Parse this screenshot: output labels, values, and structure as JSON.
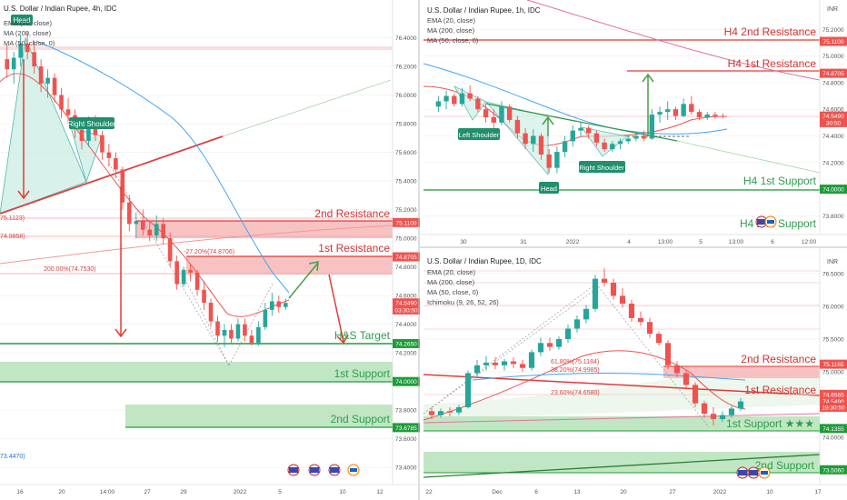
{
  "colors": {
    "bull": "#26a69a",
    "bear": "#ef5350",
    "support_zone": "#b9e3bd",
    "support_line": "#1f9c3a",
    "support_text": "#2e9c4a",
    "resistance_zone": "#f7b7b7",
    "resistance_line": "#e53935",
    "resistance_text": "#d32f2f",
    "ema20": "#ef5350",
    "ma200": "#42a5f5",
    "ma50": "#e57373",
    "badge": "#1f8f6e",
    "price_badge": "#ef5350",
    "grid": "#eeeeee"
  },
  "chart_data": [
    {
      "id": "h4",
      "type": "candlestick",
      "title": "U.S. Dollar / Indian Rupee, 4h, IDC",
      "indicators": [
        "EMA (20, close)",
        "MA (200, close)",
        "MA (50, close, 0)"
      ],
      "y_ticks": [
        "76.4000",
        "76.2000",
        "76.0000",
        "75.8000",
        "75.6000",
        "75.4000",
        "75.2000",
        "75.0000",
        "74.8000",
        "74.6000",
        "74.4000",
        "74.2000",
        "74.0000",
        "73.8000",
        "73.6000",
        "73.4000"
      ],
      "ylim": [
        73.3,
        76.6
      ],
      "x_ticks": [
        "16",
        "20",
        "14:00",
        "27",
        "29",
        "2022",
        "5",
        "10",
        "12"
      ],
      "price_labels": [
        {
          "text": "75.1100",
          "price": 75.11,
          "style": "red"
        },
        {
          "text": "74.8705",
          "price": 74.8705,
          "style": "red"
        },
        {
          "text": "74.5490",
          "price": 74.549,
          "style": "red"
        },
        {
          "text": "03:30:50",
          "price": 74.5,
          "style": "red"
        },
        {
          "text": "74.2650",
          "price": 74.265,
          "style": "green"
        },
        {
          "text": "74.0000",
          "price": 74.0,
          "style": "green"
        },
        {
          "text": "73.6785",
          "price": 73.6785,
          "style": "green"
        }
      ],
      "fib_labels": [
        {
          "text": "75.1123)",
          "price": 75.1123
        },
        {
          "text": "74.9858)",
          "price": 74.9858
        },
        {
          "text": "-27.20%(74.8706)",
          "price": 74.8706
        },
        {
          "text": "200.00%(74.7530)",
          "price": 74.753
        },
        {
          "text": "73.4470)",
          "price": 73.447
        }
      ],
      "annotations": [
        "Head",
        "Right Shoulder",
        "2nd Resistance",
        "1st Resistance",
        "H&S Target",
        "1st Support",
        "2nd Support"
      ],
      "zones": [
        {
          "type": "resistance",
          "label": "2nd Resistance",
          "from": 74.98,
          "to": 75.11
        },
        {
          "type": "resistance",
          "label": "1st Resistance",
          "from": 74.75,
          "to": 74.87
        },
        {
          "type": "support",
          "label": "1st Support",
          "from": 74.0,
          "to": 74.12
        },
        {
          "type": "support",
          "label": "2nd Support",
          "from": 73.68,
          "to": 73.82
        }
      ],
      "target_line": {
        "label": "H&S Target",
        "price": 74.265
      },
      "candles": [
        {
          "o": 76.25,
          "h": 76.35,
          "l": 76.12,
          "c": 76.18
        },
        {
          "o": 76.18,
          "h": 76.3,
          "l": 76.08,
          "c": 76.26
        },
        {
          "o": 76.26,
          "h": 76.42,
          "l": 76.2,
          "c": 76.36
        },
        {
          "o": 76.36,
          "h": 76.44,
          "l": 76.25,
          "c": 76.3
        },
        {
          "o": 76.3,
          "h": 76.38,
          "l": 76.15,
          "c": 76.2
        },
        {
          "o": 76.2,
          "h": 76.25,
          "l": 76.02,
          "c": 76.08
        },
        {
          "o": 76.08,
          "h": 76.18,
          "l": 75.98,
          "c": 76.12
        },
        {
          "o": 76.12,
          "h": 76.15,
          "l": 75.95,
          "c": 76.0
        },
        {
          "o": 76.0,
          "h": 76.05,
          "l": 75.84,
          "c": 75.9
        },
        {
          "o": 75.9,
          "h": 75.98,
          "l": 75.8,
          "c": 75.86
        },
        {
          "o": 75.86,
          "h": 75.9,
          "l": 75.7,
          "c": 75.76
        },
        {
          "o": 75.76,
          "h": 75.8,
          "l": 75.62,
          "c": 75.68
        },
        {
          "o": 75.68,
          "h": 75.85,
          "l": 75.64,
          "c": 75.8
        },
        {
          "o": 75.8,
          "h": 75.86,
          "l": 75.68,
          "c": 75.72
        },
        {
          "o": 75.72,
          "h": 75.75,
          "l": 75.55,
          "c": 75.6
        },
        {
          "o": 75.6,
          "h": 75.66,
          "l": 75.5,
          "c": 75.56
        },
        {
          "o": 75.56,
          "h": 75.6,
          "l": 75.42,
          "c": 75.48
        },
        {
          "o": 75.48,
          "h": 75.5,
          "l": 75.2,
          "c": 75.25
        },
        {
          "o": 75.25,
          "h": 75.3,
          "l": 75.05,
          "c": 75.1
        },
        {
          "o": 75.1,
          "h": 75.18,
          "l": 75.0,
          "c": 75.12
        },
        {
          "o": 75.12,
          "h": 75.2,
          "l": 75.02,
          "c": 75.06
        },
        {
          "o": 75.06,
          "h": 75.12,
          "l": 74.98,
          "c": 75.02
        },
        {
          "o": 75.02,
          "h": 75.16,
          "l": 74.98,
          "c": 75.1
        },
        {
          "o": 75.1,
          "h": 75.14,
          "l": 74.96,
          "c": 75.0
        },
        {
          "o": 75.0,
          "h": 75.04,
          "l": 74.8,
          "c": 74.84
        },
        {
          "o": 74.84,
          "h": 74.88,
          "l": 74.64,
          "c": 74.68
        },
        {
          "o": 74.68,
          "h": 74.8,
          "l": 74.66,
          "c": 74.78
        },
        {
          "o": 74.78,
          "h": 74.82,
          "l": 74.7,
          "c": 74.76
        },
        {
          "o": 74.76,
          "h": 74.78,
          "l": 74.6,
          "c": 74.64
        },
        {
          "o": 74.64,
          "h": 74.7,
          "l": 74.5,
          "c": 74.55
        },
        {
          "o": 74.55,
          "h": 74.58,
          "l": 74.38,
          "c": 74.42
        },
        {
          "o": 74.42,
          "h": 74.46,
          "l": 74.28,
          "c": 74.32
        },
        {
          "o": 74.32,
          "h": 74.4,
          "l": 74.24,
          "c": 74.36
        },
        {
          "o": 74.36,
          "h": 74.4,
          "l": 74.26,
          "c": 74.3
        },
        {
          "o": 74.3,
          "h": 74.44,
          "l": 74.28,
          "c": 74.4
        },
        {
          "o": 74.4,
          "h": 74.44,
          "l": 74.28,
          "c": 74.32
        },
        {
          "o": 74.32,
          "h": 74.36,
          "l": 74.25,
          "c": 74.27
        },
        {
          "o": 74.27,
          "h": 74.42,
          "l": 74.25,
          "c": 74.38
        },
        {
          "o": 74.38,
          "h": 74.55,
          "l": 74.36,
          "c": 74.5
        },
        {
          "o": 74.5,
          "h": 74.62,
          "l": 74.46,
          "c": 74.56
        },
        {
          "o": 74.56,
          "h": 74.6,
          "l": 74.48,
          "c": 74.52
        },
        {
          "o": 74.52,
          "h": 74.58,
          "l": 74.5,
          "c": 74.549
        }
      ]
    },
    {
      "id": "h1",
      "type": "candlestick",
      "title": "U.S. Dollar / Indian Rupee, 1h, IDC",
      "indicators": [
        "EMA (20, close)",
        "MA (200, close)",
        "MA (50, close, 0)"
      ],
      "y_ticks": [
        "75.2000",
        "75.0000",
        "74.8000",
        "74.6000",
        "74.4000",
        "74.2000",
        "74.0000",
        "73.8000"
      ],
      "ylim": [
        73.7,
        75.38
      ],
      "x_ticks": [
        "30",
        "31",
        "2022",
        "4",
        "13:00",
        "5",
        "13:00",
        "6",
        "12:00"
      ],
      "price_labels": [
        {
          "text": "75.1100",
          "price": 75.11,
          "style": "red"
        },
        {
          "text": "74.8705",
          "price": 74.8705,
          "style": "red"
        },
        {
          "text": "74.5490",
          "price": 74.549,
          "style": "red"
        },
        {
          "text": "30:50",
          "price": 74.5,
          "style": "red"
        },
        {
          "text": "74.0000",
          "price": 74.0,
          "style": "green"
        }
      ],
      "annotations": [
        "H4 2nd Resistance",
        "H4 1st Resistance",
        "H4 1st Support",
        "Left Shoulder",
        "Head",
        "Right Shoulder",
        "H4 2nd Support"
      ],
      "candles": [
        {
          "o": 74.62,
          "h": 74.7,
          "l": 74.58,
          "c": 74.66
        },
        {
          "o": 74.66,
          "h": 74.74,
          "l": 74.6,
          "c": 74.7
        },
        {
          "o": 74.7,
          "h": 74.72,
          "l": 74.62,
          "c": 74.64
        },
        {
          "o": 74.64,
          "h": 74.76,
          "l": 74.62,
          "c": 74.72
        },
        {
          "o": 74.72,
          "h": 74.78,
          "l": 74.66,
          "c": 74.68
        },
        {
          "o": 74.68,
          "h": 74.7,
          "l": 74.58,
          "c": 74.6
        },
        {
          "o": 74.6,
          "h": 74.64,
          "l": 74.5,
          "c": 74.54
        },
        {
          "o": 74.54,
          "h": 74.6,
          "l": 74.46,
          "c": 74.5
        },
        {
          "o": 74.5,
          "h": 74.66,
          "l": 74.48,
          "c": 74.62
        },
        {
          "o": 74.62,
          "h": 74.64,
          "l": 74.5,
          "c": 74.52
        },
        {
          "o": 74.52,
          "h": 74.55,
          "l": 74.38,
          "c": 74.42
        },
        {
          "o": 74.42,
          "h": 74.46,
          "l": 74.3,
          "c": 74.34
        },
        {
          "o": 74.34,
          "h": 74.45,
          "l": 74.28,
          "c": 74.4
        },
        {
          "o": 74.4,
          "h": 74.42,
          "l": 74.22,
          "c": 74.26
        },
        {
          "o": 74.26,
          "h": 74.3,
          "l": 74.12,
          "c": 74.16
        },
        {
          "o": 74.16,
          "h": 74.32,
          "l": 74.12,
          "c": 74.28
        },
        {
          "o": 74.28,
          "h": 74.4,
          "l": 74.24,
          "c": 74.36
        },
        {
          "o": 74.36,
          "h": 74.48,
          "l": 74.32,
          "c": 74.44
        },
        {
          "o": 74.44,
          "h": 74.5,
          "l": 74.4,
          "c": 74.46
        },
        {
          "o": 74.46,
          "h": 74.48,
          "l": 74.38,
          "c": 74.42
        },
        {
          "o": 74.42,
          "h": 74.44,
          "l": 74.32,
          "c": 74.35
        },
        {
          "o": 74.35,
          "h": 74.38,
          "l": 74.28,
          "c": 74.3
        },
        {
          "o": 74.3,
          "h": 74.36,
          "l": 74.28,
          "c": 74.34
        },
        {
          "o": 74.34,
          "h": 74.38,
          "l": 74.3,
          "c": 74.36
        },
        {
          "o": 74.36,
          "h": 74.4,
          "l": 74.34,
          "c": 74.38
        },
        {
          "o": 74.38,
          "h": 74.42,
          "l": 74.36,
          "c": 74.4
        },
        {
          "o": 74.4,
          "h": 74.44,
          "l": 74.36,
          "c": 74.38
        },
        {
          "o": 74.38,
          "h": 74.6,
          "l": 74.37,
          "c": 74.56
        },
        {
          "o": 74.56,
          "h": 74.62,
          "l": 74.5,
          "c": 74.58
        },
        {
          "o": 74.58,
          "h": 74.66,
          "l": 74.52,
          "c": 74.6
        },
        {
          "o": 74.6,
          "h": 74.62,
          "l": 74.52,
          "c": 74.55
        },
        {
          "o": 74.55,
          "h": 74.68,
          "l": 74.54,
          "c": 74.64
        },
        {
          "o": 74.64,
          "h": 74.7,
          "l": 74.56,
          "c": 74.58
        },
        {
          "o": 74.58,
          "h": 74.6,
          "l": 74.52,
          "c": 74.54
        },
        {
          "o": 74.54,
          "h": 74.58,
          "l": 74.52,
          "c": 74.56
        },
        {
          "o": 74.56,
          "h": 74.58,
          "l": 74.53,
          "c": 74.55
        },
        {
          "o": 74.55,
          "h": 74.57,
          "l": 74.53,
          "c": 74.549
        }
      ]
    },
    {
      "id": "d1",
      "type": "candlestick",
      "title": "U.S. Dollar / Indian Rupee, 1D, IDC",
      "indicators": [
        "EMA (20, close)",
        "MA (200, close)",
        "MA (50, close, 0)",
        "Ichimoku (9, 26, 52, 26)"
      ],
      "y_ticks": [
        "76.5000",
        "76.0000",
        "75.5000",
        "75.0000",
        "74.5000",
        "74.0000",
        "73.5000"
      ],
      "ylim": [
        73.35,
        76.72
      ],
      "x_ticks": [
        "22",
        "Dec",
        "6",
        "13",
        "20",
        "27",
        "2022",
        "10",
        "17"
      ],
      "price_labels": [
        {
          "text": "75.1165",
          "price": 75.1165,
          "style": "red"
        },
        {
          "text": "74.6565",
          "price": 74.6565,
          "style": "red"
        },
        {
          "text": "74.5490",
          "price": 74.549,
          "style": "red"
        },
        {
          "text": "19:30:50",
          "price": 74.46,
          "style": "red"
        },
        {
          "text": "74.1355",
          "price": 74.1355,
          "style": "green"
        },
        {
          "text": "73.5060",
          "price": 73.506,
          "style": "green"
        }
      ],
      "fib_labels": [
        {
          "text": "61.80%(75.1184)",
          "price": 75.1184
        },
        {
          "text": "38.20%(74.9985)",
          "price": 74.9985
        },
        {
          "text": "23.60%(74.6580)",
          "price": 74.658
        }
      ],
      "annotations": [
        "2nd Resistance",
        "1st Resistance",
        "1st Support ★★★",
        "2nd Support"
      ],
      "zones": [
        {
          "type": "resistance",
          "label": "2nd Resistance",
          "from": 74.98,
          "to": 75.12
        },
        {
          "type": "support",
          "label": "1st Support ★★★",
          "from": 74.13,
          "to": 74.38
        },
        {
          "type": "support",
          "label": "2nd Support",
          "from": 73.5,
          "to": 73.74
        }
      ],
      "candles": [
        {
          "o": 74.4,
          "h": 74.46,
          "l": 74.28,
          "c": 74.34
        },
        {
          "o": 74.34,
          "h": 74.44,
          "l": 74.3,
          "c": 74.4
        },
        {
          "o": 74.4,
          "h": 74.46,
          "l": 74.32,
          "c": 74.38
        },
        {
          "o": 74.38,
          "h": 74.5,
          "l": 74.34,
          "c": 74.46
        },
        {
          "o": 74.46,
          "h": 75.02,
          "l": 74.44,
          "c": 74.98
        },
        {
          "o": 74.98,
          "h": 75.18,
          "l": 74.92,
          "c": 75.1
        },
        {
          "o": 75.1,
          "h": 75.24,
          "l": 75.02,
          "c": 75.14
        },
        {
          "o": 75.14,
          "h": 75.22,
          "l": 75.04,
          "c": 75.1
        },
        {
          "o": 75.1,
          "h": 75.2,
          "l": 75.02,
          "c": 75.16
        },
        {
          "o": 75.16,
          "h": 75.22,
          "l": 75.06,
          "c": 75.12
        },
        {
          "o": 75.12,
          "h": 75.18,
          "l": 75.0,
          "c": 75.06
        },
        {
          "o": 75.06,
          "h": 75.34,
          "l": 75.02,
          "c": 75.3
        },
        {
          "o": 75.3,
          "h": 75.52,
          "l": 75.24,
          "c": 75.44
        },
        {
          "o": 75.44,
          "h": 75.52,
          "l": 75.32,
          "c": 75.38
        },
        {
          "o": 75.38,
          "h": 75.54,
          "l": 75.34,
          "c": 75.5
        },
        {
          "o": 75.5,
          "h": 75.72,
          "l": 75.44,
          "c": 75.66
        },
        {
          "o": 75.66,
          "h": 75.86,
          "l": 75.6,
          "c": 75.8
        },
        {
          "o": 75.8,
          "h": 76.02,
          "l": 75.74,
          "c": 75.96
        },
        {
          "o": 75.96,
          "h": 76.48,
          "l": 75.92,
          "c": 76.42
        },
        {
          "o": 76.42,
          "h": 76.58,
          "l": 76.3,
          "c": 76.36
        },
        {
          "o": 76.36,
          "h": 76.42,
          "l": 76.1,
          "c": 76.16
        },
        {
          "o": 76.16,
          "h": 76.28,
          "l": 75.98,
          "c": 76.04
        },
        {
          "o": 76.04,
          "h": 76.1,
          "l": 75.76,
          "c": 75.82
        },
        {
          "o": 75.82,
          "h": 75.92,
          "l": 75.7,
          "c": 75.76
        },
        {
          "o": 75.76,
          "h": 75.82,
          "l": 75.52,
          "c": 75.58
        },
        {
          "o": 75.58,
          "h": 75.62,
          "l": 75.4,
          "c": 75.44
        },
        {
          "o": 75.44,
          "h": 75.48,
          "l": 75.04,
          "c": 75.1
        },
        {
          "o": 75.1,
          "h": 75.16,
          "l": 74.92,
          "c": 74.98
        },
        {
          "o": 74.98,
          "h": 75.02,
          "l": 74.76,
          "c": 74.8
        },
        {
          "o": 74.8,
          "h": 74.84,
          "l": 74.46,
          "c": 74.52
        },
        {
          "o": 74.52,
          "h": 74.56,
          "l": 74.3,
          "c": 74.36
        },
        {
          "o": 74.36,
          "h": 74.46,
          "l": 74.18,
          "c": 74.28
        },
        {
          "o": 74.28,
          "h": 74.4,
          "l": 74.24,
          "c": 74.34
        },
        {
          "o": 74.34,
          "h": 74.48,
          "l": 74.3,
          "c": 74.44
        },
        {
          "o": 74.44,
          "h": 74.6,
          "l": 74.4,
          "c": 74.549
        }
      ]
    }
  ]
}
